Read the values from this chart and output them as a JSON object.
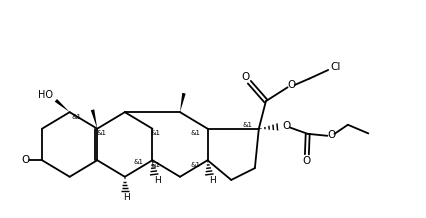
{
  "bg_color": "#ffffff",
  "line_color": "#000000",
  "line_width": 1.3,
  "text_color": "#000000",
  "font_size": 6.5,
  "xlim": [
    0,
    10.8
  ],
  "ylim": [
    0,
    5.2
  ]
}
